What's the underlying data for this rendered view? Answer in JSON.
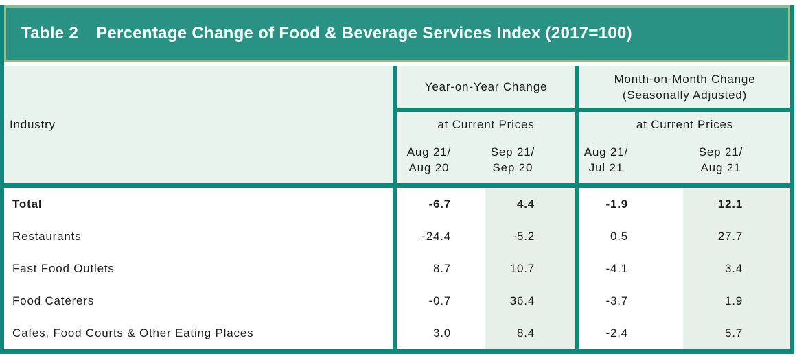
{
  "title": {
    "label": "Table 2",
    "text": "Percentage Change of Food & Beverage Services Index (2017=100)"
  },
  "header": {
    "industry_label": "Industry",
    "sections": [
      {
        "title": "Year-on-Year Change",
        "subtitle": "at Current Prices",
        "periods": [
          [
            "Aug 21/",
            "Aug 20"
          ],
          [
            "Sep 21/",
            "Sep 20"
          ]
        ]
      },
      {
        "title_line1": "Month-on-Month Change",
        "title_line2": "(Seasonally Adjusted)",
        "subtitle": "at Current Prices",
        "periods": [
          [
            "Aug 21/",
            "Jul 21"
          ],
          [
            "Sep 21/",
            "Aug 21"
          ]
        ]
      }
    ]
  },
  "rows": [
    {
      "label": "Total",
      "bold": true,
      "values": [
        "-6.7",
        "4.4",
        "-1.9",
        "12.1"
      ]
    },
    {
      "label": "Restaurants",
      "bold": false,
      "values": [
        "-24.4",
        "-5.2",
        "0.5",
        "27.7"
      ]
    },
    {
      "label": "Fast Food Outlets",
      "bold": false,
      "values": [
        "8.7",
        "10.7",
        "-4.1",
        "3.4"
      ]
    },
    {
      "label": "Food Caterers",
      "bold": false,
      "values": [
        "-0.7",
        "36.4",
        "-3.7",
        "1.9"
      ]
    },
    {
      "label": "Cafes, Food Courts & Other Eating Places",
      "bold": false,
      "values": [
        "3.0",
        "8.4",
        "-2.4",
        "5.7"
      ]
    }
  ],
  "colors": {
    "banner_fill": "#2A9285",
    "banner_outline": "#90BD8E",
    "grid_border": "#0F8779",
    "header_background": "#E9F3EE",
    "shaded_column_background": "#E6F0E9",
    "title_text": "#FFFFFF",
    "body_text": "#1E1E1E"
  }
}
